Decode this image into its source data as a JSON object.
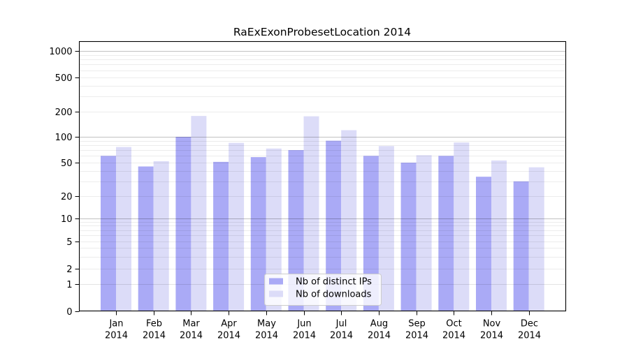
{
  "figure": {
    "background_color": "#ffffff",
    "plot_border_color": "#000000"
  },
  "chart_data": {
    "type": "bar",
    "title": "RaExExonProbesetLocation 2014",
    "categories": [
      "Jan",
      "Feb",
      "Mar",
      "Apr",
      "May",
      "Jun",
      "Jul",
      "Aug",
      "Sep",
      "Oct",
      "Nov",
      "Dec"
    ],
    "year_label": "2014",
    "series": [
      {
        "name": "Nb of distinct IPs",
        "color": "#aaaaf6",
        "values": [
          60,
          45,
          100,
          51,
          58,
          70,
          90,
          60,
          50,
          60,
          34,
          30
        ]
      },
      {
        "name": "Nb of downloads",
        "color": "#dcdcf8",
        "values": [
          76,
          52,
          178,
          85,
          73,
          176,
          120,
          78,
          61,
          86,
          53,
          44
        ]
      }
    ],
    "y_axis": {
      "ticks": [
        0,
        1,
        2,
        5,
        10,
        20,
        50,
        100,
        200,
        500,
        1000
      ],
      "scale": "log-like with linear segment between 0 and 1",
      "top_value": 1300
    },
    "x_axis": {
      "label_line_1": "month abbreviation",
      "label_line_2": "2014"
    },
    "grid": {
      "major_on": true,
      "minor_on": true,
      "orientation": "horizontal"
    },
    "legend": {
      "position": "lower center inside plot",
      "entries": [
        "Nb of distinct IPs",
        "Nb of downloads"
      ]
    }
  }
}
